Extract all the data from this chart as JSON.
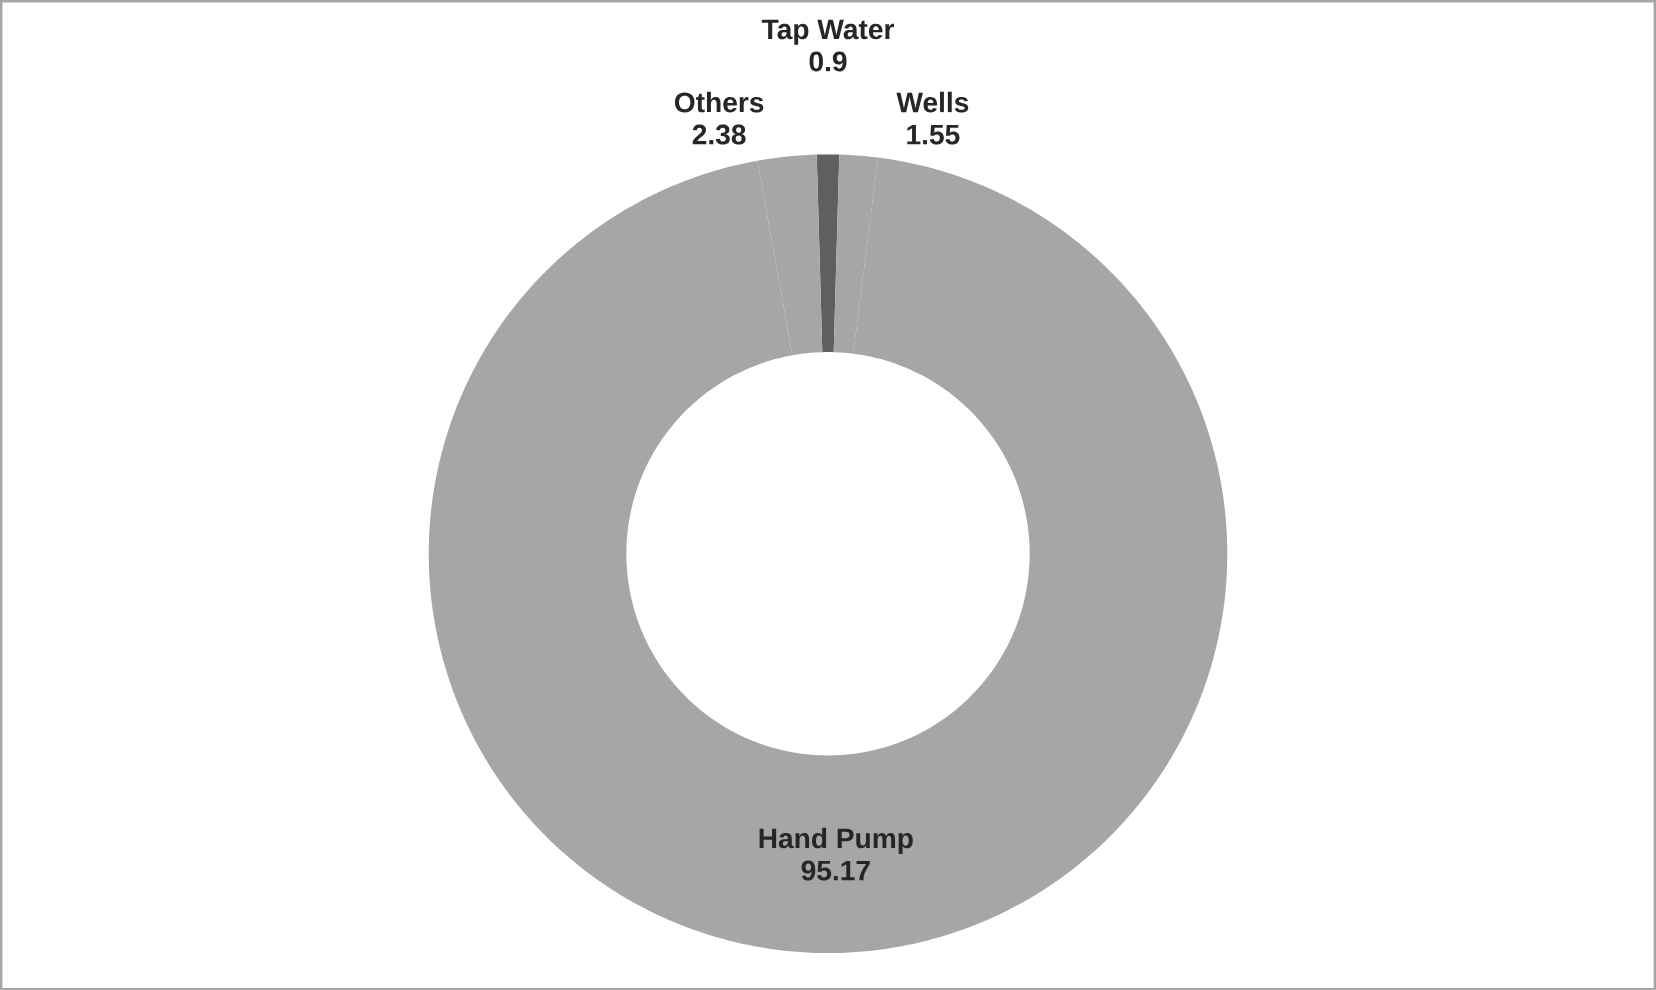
{
  "chart_data": {
    "type": "donut",
    "categories": [
      "Tap Water",
      "Wells",
      "Hand Pump",
      "Others"
    ],
    "values": [
      0.9,
      1.55,
      95.17,
      2.38
    ],
    "colors": [
      "#5f5f5f",
      "#a6a6a6",
      "#a6a6a6",
      "#a6a6a6"
    ],
    "data_labels": true
  }
}
